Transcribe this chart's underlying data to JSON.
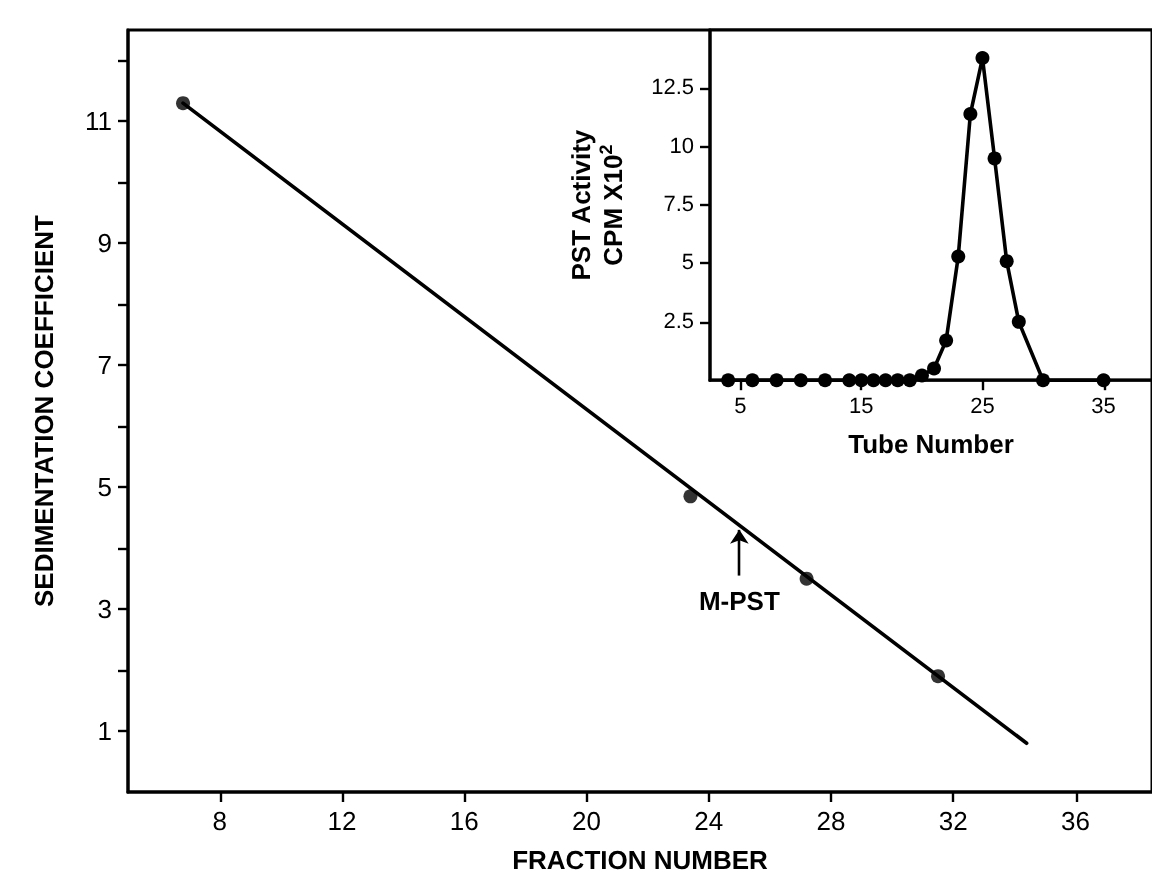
{
  "chart_data": [
    {
      "type": "scatter",
      "xlabel": "FRACTION NUMBER",
      "ylabel": "SEDIMENTATION COEFFICIENT",
      "xlim": [
        5,
        38.5
      ],
      "ylim": [
        0,
        12.5
      ],
      "xticks": [
        8,
        12,
        16,
        20,
        24,
        28,
        32,
        36
      ],
      "yticks": [
        1,
        {
          "value": 2,
          "label": null
        },
        3,
        {
          "value": 4,
          "label": null
        },
        5,
        {
          "value": 6,
          "label": null
        },
        7,
        {
          "value": 8,
          "label": null
        },
        9,
        {
          "value": 10,
          "label": null
        },
        11,
        {
          "value": 12,
          "label": null
        }
      ],
      "series": [
        {
          "type": "scatter",
          "color": "#000000",
          "x": [
            6.8,
            23.4,
            27.2,
            31.5
          ],
          "values": [
            11.3,
            4.85,
            3.5,
            1.9
          ]
        },
        {
          "type": "line",
          "color": "#000000",
          "marker": "none",
          "x": [
            6.8,
            34.4
          ],
          "values": [
            11.3,
            0.8
          ]
        }
      ],
      "annotations": [
        {
          "text": "M-PST",
          "x": 25,
          "y": 4.3
        }
      ],
      "grid": false,
      "marker": "circle",
      "line_style": "solid"
    },
    {
      "type": "line",
      "xlabel": "Tube Number",
      "ylabel": "PST Activity\nCPM X10$^{2}$",
      "xlim": [
        2.5,
        39
      ],
      "ylim": [
        0,
        15
      ],
      "xticks": [
        5,
        15,
        25,
        35
      ],
      "yticks": [
        2.5,
        5,
        7.5,
        10,
        12.5
      ],
      "series": [
        {
          "color": "#000000",
          "x": [
            4,
            6,
            8,
            10,
            12,
            14,
            15,
            16,
            17,
            18,
            19,
            20,
            21,
            22,
            23,
            24,
            25,
            26,
            27,
            28,
            30,
            35
          ],
          "values": [
            0,
            0,
            0,
            0,
            0,
            0,
            0,
            0,
            0,
            0,
            0,
            0.2,
            0.5,
            1.7,
            5.3,
            11.4,
            13.8,
            9.5,
            5.1,
            2.5,
            0,
            0
          ]
        }
      ],
      "grid": false,
      "marker": "circle",
      "line_style": "solid"
    }
  ]
}
